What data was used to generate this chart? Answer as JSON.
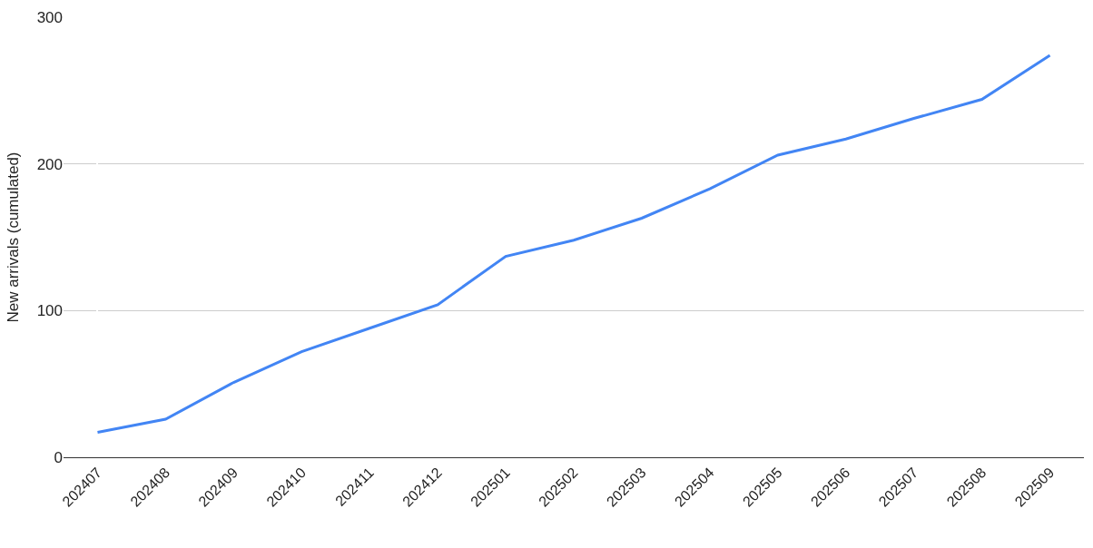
{
  "chart_data": {
    "type": "line",
    "ylabel": "New arrivals (cumulated)",
    "categories": [
      "202407",
      "202408",
      "202409",
      "202410",
      "202411",
      "202412",
      "202501",
      "202502",
      "202503",
      "202504",
      "202505",
      "202506",
      "202507",
      "202508",
      "202509"
    ],
    "series": [
      {
        "color": "#4285f4",
        "values": [
          17,
          26,
          51,
          72,
          88,
          104,
          137,
          148,
          163,
          183,
          206,
          217,
          231,
          244,
          274
        ]
      }
    ],
    "ylim": [
      0,
      300
    ],
    "yticks": [
      0,
      100,
      200,
      300
    ],
    "grid": "y",
    "marker": "none",
    "line_style": "solid"
  }
}
